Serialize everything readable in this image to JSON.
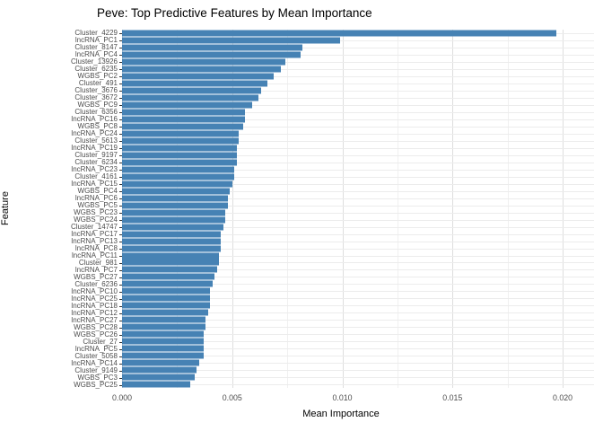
{
  "title": "Peve: Top Predictive Features by Mean Importance",
  "chart_data": {
    "type": "bar",
    "orientation": "horizontal",
    "title": "Peve: Top Predictive Features by Mean Importance",
    "xlabel": "Mean Importance",
    "ylabel": "Feature",
    "xlim": [
      0,
      0.02
    ],
    "x_ticks": [
      0,
      0.005,
      0.01,
      0.015,
      0.02
    ],
    "x_tick_labels": [
      "0.000",
      "0.005",
      "0.010",
      "0.015",
      "0.020"
    ],
    "x_minor_ticks": [
      0.0025,
      0.0075,
      0.0125,
      0.0175
    ],
    "grid": true,
    "legend": "none",
    "bar_color": "#4682B4",
    "categories": [
      "Cluster_4229",
      "lncRNA_PC1",
      "Cluster_8147",
      "lncRNA_PC4",
      "Cluster_13926",
      "Cluster_6235",
      "WGBS_PC2",
      "Cluster_491",
      "Cluster_3676",
      "Cluster_3672",
      "WGBS_PC9",
      "Cluster_6356",
      "lncRNA_PC16",
      "WGBS_PC8",
      "lncRNA_PC24",
      "Cluster_5613",
      "lncRNA_PC19",
      "Cluster_9197",
      "Cluster_6234",
      "lncRNA_PC23",
      "Cluster_4161",
      "lncRNA_PC15",
      "WGBS_PC4",
      "lncRNA_PC6",
      "WGBS_PC5",
      "WGBS_PC23",
      "WGBS_PC24",
      "Cluster_14747",
      "lncRNA_PC17",
      "lncRNA_PC13",
      "lncRNA_PC8",
      "lncRNA_PC11",
      "Cluster_981",
      "lncRNA_PC7",
      "WGBS_PC27",
      "Cluster_6236",
      "lncRNA_PC10",
      "lncRNA_PC25",
      "lncRNA_PC18",
      "lncRNA_PC12",
      "lncRNA_PC27",
      "WGBS_PC28",
      "WGBS_PC26",
      "Cluster_27",
      "lncRNA_PC5",
      "Cluster_5058",
      "lncRNA_PC14",
      "Cluster_9149",
      "WGBS_PC3",
      "WGBS_PC25"
    ],
    "values": [
      0.0197,
      0.0099,
      0.0082,
      0.0081,
      0.0074,
      0.0072,
      0.0069,
      0.0066,
      0.0063,
      0.0062,
      0.0059,
      0.0056,
      0.0056,
      0.0055,
      0.0053,
      0.0053,
      0.0052,
      0.0052,
      0.0052,
      0.0051,
      0.0051,
      0.005,
      0.0049,
      0.0048,
      0.0048,
      0.0047,
      0.0047,
      0.0046,
      0.0045,
      0.0045,
      0.0045,
      0.0044,
      0.0044,
      0.0043,
      0.0042,
      0.0041,
      0.004,
      0.004,
      0.004,
      0.0039,
      0.0038,
      0.0038,
      0.0037,
      0.0037,
      0.0037,
      0.0037,
      0.0035,
      0.0034,
      0.0033,
      0.0031
    ]
  }
}
